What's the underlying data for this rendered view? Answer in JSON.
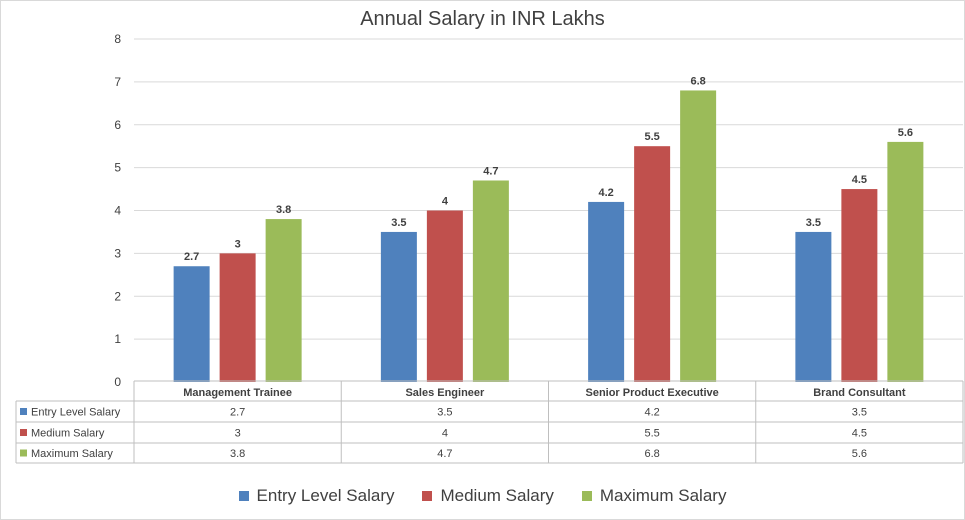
{
  "chart_data": {
    "type": "bar",
    "title": "Annual Salary in INR Lakhs",
    "xlabel": "",
    "ylabel": "",
    "ylim": [
      0,
      8
    ],
    "yticks": [
      0,
      1,
      2,
      3,
      4,
      5,
      6,
      7,
      8
    ],
    "grid": true,
    "categories": [
      "Management Trainee",
      "Sales Engineer",
      "Senior Product Executive",
      "Brand Consultant"
    ],
    "series": [
      {
        "name": "Entry Level Salary",
        "color": "#4f81bd",
        "values": [
          2.7,
          3.5,
          4.2,
          3.5
        ]
      },
      {
        "name": "Medium Salary",
        "color": "#c0504d",
        "values": [
          3,
          4,
          5.5,
          4.5
        ]
      },
      {
        "name": "Maximum Salary",
        "color": "#9bbb59",
        "values": [
          3.8,
          4.7,
          6.8,
          5.6
        ]
      }
    ],
    "legend": "bottom",
    "data_table": true
  }
}
